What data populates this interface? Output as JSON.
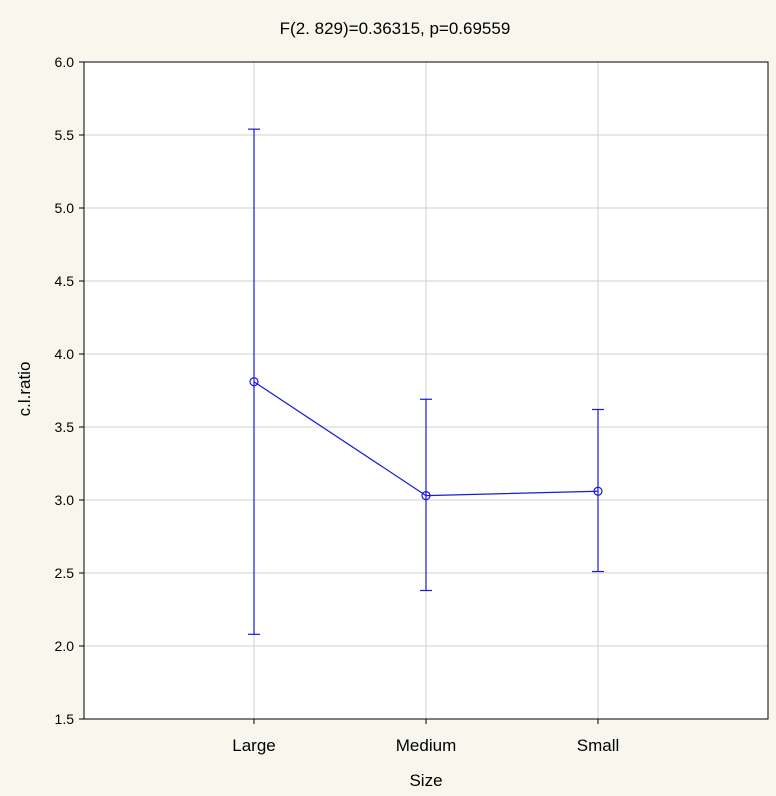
{
  "chart_data": {
    "type": "line",
    "title": "F(2. 829)=0.36315, p=0.69559",
    "xlabel": "Size",
    "ylabel": "c.l.ratio",
    "categories": [
      "Large",
      "Medium",
      "Small"
    ],
    "series": [
      {
        "values": [
          3.81,
          3.03,
          3.06
        ],
        "error_lower": [
          2.08,
          2.38,
          2.51
        ],
        "error_upper": [
          5.54,
          3.69,
          3.62
        ]
      }
    ],
    "yticks": [
      "1.5",
      "2.0",
      "2.5",
      "3.0",
      "3.5",
      "4.0",
      "4.5",
      "5.0",
      "5.5",
      "6.0"
    ],
    "ylim": [
      1.5,
      6.0
    ],
    "grid": true,
    "legend": "none"
  },
  "colors": {
    "series": "#1a1adc",
    "grid": "#d2d2d2",
    "background": "#f8f7ee",
    "plot_background": "#ffffff",
    "axis": "#000000"
  }
}
